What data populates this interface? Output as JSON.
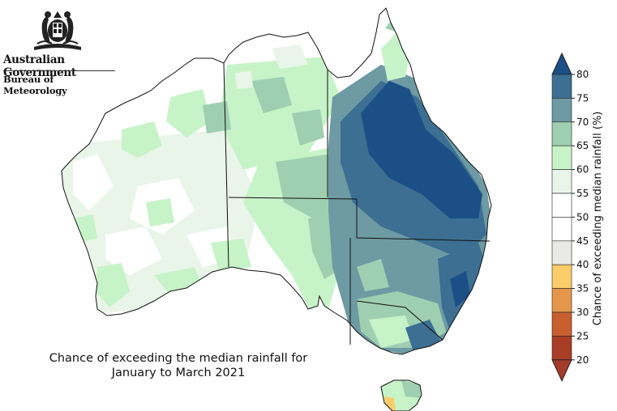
{
  "header": {
    "government": "Australian Government",
    "bureau": "Bureau of Meteorology"
  },
  "map": {
    "title_line1": "Chance of exceeding the median rainfall for",
    "title_line2": "January to March 2021",
    "region": "Australia"
  },
  "legend": {
    "label": "Chance of exceeding median rainfall (%)",
    "ticks": [
      "80",
      "75",
      "70",
      "65",
      "60",
      "55",
      "50",
      "45",
      "40",
      "35",
      "30",
      "25",
      "20"
    ],
    "bands": [
      {
        "range": ">80",
        "color": "#1b4f85"
      },
      {
        "range": "75-80",
        "color": "#3c6f92"
      },
      {
        "range": "70-75",
        "color": "#6d9aa3"
      },
      {
        "range": "65-70",
        "color": "#9ecfb0"
      },
      {
        "range": "60-65",
        "color": "#c7f3c8"
      },
      {
        "range": "55-60",
        "color": "#e8f5e8"
      },
      {
        "range": "50-55",
        "color": "#ffffff"
      },
      {
        "range": "45-50",
        "color": "#ffffff"
      },
      {
        "range": "40-45",
        "color": "#e9e9e7"
      },
      {
        "range": "35-40",
        "color": "#fbcd6a"
      },
      {
        "range": "30-35",
        "color": "#e4964a"
      },
      {
        "range": "25-30",
        "color": "#c85f2f"
      },
      {
        "range": "20-25",
        "color": "#aa3d25"
      },
      {
        "range": "<20",
        "color": "#a33a2a"
      }
    ]
  }
}
